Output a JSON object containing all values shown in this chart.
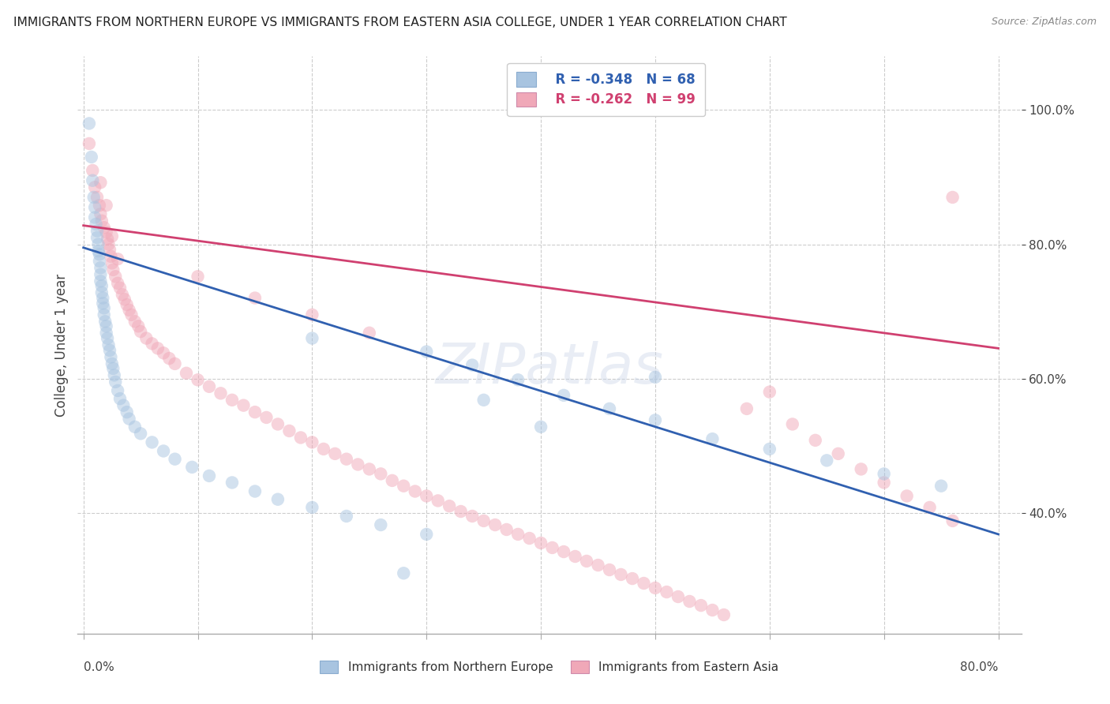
{
  "title": "IMMIGRANTS FROM NORTHERN EUROPE VS IMMIGRANTS FROM EASTERN ASIA COLLEGE, UNDER 1 YEAR CORRELATION CHART",
  "source": "Source: ZipAtlas.com",
  "ylabel": "College, Under 1 year",
  "ytick_labels": [
    "40.0%",
    "60.0%",
    "80.0%",
    "100.0%"
  ],
  "ytick_values": [
    0.4,
    0.6,
    0.8,
    1.0
  ],
  "xlim": [
    -0.005,
    0.82
  ],
  "ylim": [
    0.22,
    1.08
  ],
  "legend_blue_r": "R = -0.348",
  "legend_blue_n": "N = 68",
  "legend_pink_r": "R = -0.262",
  "legend_pink_n": "N = 99",
  "blue_color": "#a8c4e0",
  "pink_color": "#f0a8b8",
  "blue_line_color": "#3060b0",
  "pink_line_color": "#d04070",
  "legend_blue_text_color": "#3060b0",
  "legend_pink_text_color": "#d04070",
  "watermark": "ZIPatlas",
  "blue_line_y_start": 0.795,
  "blue_line_y_end": 0.368,
  "pink_line_y_start": 0.828,
  "pink_line_y_end": 0.645,
  "dot_size": 140,
  "dot_alpha": 0.5,
  "grid_color": "#cccccc",
  "background_color": "#ffffff",
  "blue_x": [
    0.005,
    0.007,
    0.008,
    0.009,
    0.01,
    0.01,
    0.011,
    0.012,
    0.012,
    0.013,
    0.013,
    0.014,
    0.014,
    0.015,
    0.015,
    0.015,
    0.016,
    0.016,
    0.017,
    0.017,
    0.018,
    0.018,
    0.019,
    0.02,
    0.02,
    0.021,
    0.022,
    0.023,
    0.024,
    0.025,
    0.026,
    0.027,
    0.028,
    0.03,
    0.032,
    0.035,
    0.038,
    0.04,
    0.045,
    0.05,
    0.06,
    0.07,
    0.08,
    0.095,
    0.11,
    0.13,
    0.15,
    0.17,
    0.2,
    0.23,
    0.26,
    0.3,
    0.34,
    0.38,
    0.42,
    0.46,
    0.5,
    0.55,
    0.6,
    0.65,
    0.7,
    0.75,
    0.35,
    0.3,
    0.2,
    0.4,
    0.5,
    0.28
  ],
  "blue_y": [
    0.98,
    0.93,
    0.895,
    0.87,
    0.855,
    0.84,
    0.83,
    0.82,
    0.81,
    0.8,
    0.79,
    0.785,
    0.775,
    0.765,
    0.755,
    0.745,
    0.738,
    0.728,
    0.72,
    0.712,
    0.705,
    0.695,
    0.685,
    0.678,
    0.668,
    0.66,
    0.65,
    0.642,
    0.632,
    0.622,
    0.615,
    0.605,
    0.595,
    0.582,
    0.57,
    0.56,
    0.55,
    0.54,
    0.528,
    0.518,
    0.505,
    0.492,
    0.48,
    0.468,
    0.455,
    0.445,
    0.432,
    0.42,
    0.408,
    0.395,
    0.382,
    0.368,
    0.62,
    0.598,
    0.575,
    0.555,
    0.538,
    0.51,
    0.495,
    0.478,
    0.458,
    0.44,
    0.568,
    0.64,
    0.66,
    0.528,
    0.602,
    0.31
  ],
  "pink_x": [
    0.005,
    0.008,
    0.01,
    0.012,
    0.014,
    0.015,
    0.016,
    0.018,
    0.02,
    0.021,
    0.022,
    0.023,
    0.024,
    0.025,
    0.026,
    0.028,
    0.03,
    0.032,
    0.034,
    0.036,
    0.038,
    0.04,
    0.042,
    0.045,
    0.048,
    0.05,
    0.055,
    0.06,
    0.065,
    0.07,
    0.075,
    0.08,
    0.09,
    0.1,
    0.11,
    0.12,
    0.13,
    0.14,
    0.15,
    0.16,
    0.17,
    0.18,
    0.19,
    0.2,
    0.21,
    0.22,
    0.23,
    0.24,
    0.25,
    0.26,
    0.27,
    0.28,
    0.29,
    0.3,
    0.31,
    0.32,
    0.33,
    0.34,
    0.35,
    0.36,
    0.37,
    0.38,
    0.39,
    0.4,
    0.41,
    0.42,
    0.43,
    0.44,
    0.45,
    0.46,
    0.47,
    0.48,
    0.49,
    0.5,
    0.51,
    0.52,
    0.53,
    0.54,
    0.55,
    0.56,
    0.58,
    0.6,
    0.62,
    0.64,
    0.66,
    0.68,
    0.7,
    0.72,
    0.74,
    0.76,
    0.015,
    0.02,
    0.025,
    0.03,
    0.1,
    0.15,
    0.2,
    0.25,
    0.76
  ],
  "pink_y": [
    0.95,
    0.91,
    0.885,
    0.87,
    0.858,
    0.845,
    0.835,
    0.825,
    0.818,
    0.808,
    0.8,
    0.792,
    0.782,
    0.772,
    0.762,
    0.752,
    0.742,
    0.735,
    0.725,
    0.718,
    0.71,
    0.702,
    0.695,
    0.685,
    0.678,
    0.67,
    0.66,
    0.652,
    0.645,
    0.638,
    0.63,
    0.622,
    0.608,
    0.598,
    0.588,
    0.578,
    0.568,
    0.56,
    0.55,
    0.542,
    0.532,
    0.522,
    0.512,
    0.505,
    0.495,
    0.488,
    0.48,
    0.472,
    0.465,
    0.458,
    0.448,
    0.44,
    0.432,
    0.425,
    0.418,
    0.41,
    0.402,
    0.395,
    0.388,
    0.382,
    0.375,
    0.368,
    0.362,
    0.355,
    0.348,
    0.342,
    0.335,
    0.328,
    0.322,
    0.315,
    0.308,
    0.302,
    0.295,
    0.288,
    0.282,
    0.275,
    0.268,
    0.262,
    0.255,
    0.248,
    0.555,
    0.58,
    0.532,
    0.508,
    0.488,
    0.465,
    0.445,
    0.425,
    0.408,
    0.388,
    0.892,
    0.858,
    0.812,
    0.778,
    0.752,
    0.72,
    0.695,
    0.668,
    0.87
  ]
}
